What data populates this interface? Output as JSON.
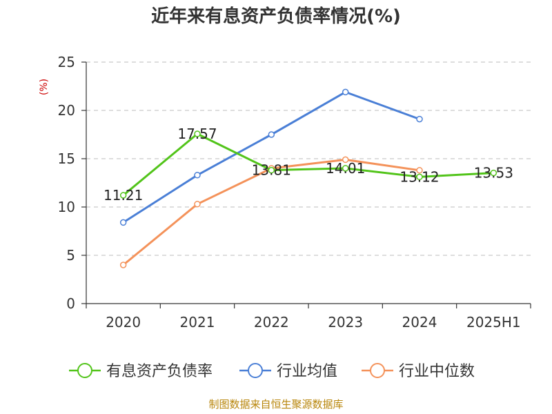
{
  "chart_data": {
    "type": "line",
    "title": "近年来有息资产负债率情况(%)",
    "ylabel": "(%)",
    "xlabel": "",
    "categories": [
      "2020",
      "2021",
      "2022",
      "2023",
      "2024",
      "2025H1"
    ],
    "ylim": [
      0,
      25
    ],
    "yticks": [
      0,
      5,
      10,
      15,
      20,
      25
    ],
    "grid": true,
    "legend_position": "bottom",
    "series": [
      {
        "name": "有息资产负债率",
        "color": "#52c41a",
        "values": [
          11.21,
          17.57,
          13.81,
          14.01,
          13.12,
          13.53
        ],
        "labels": [
          "11.21",
          "17.57",
          "13.81",
          "14.01",
          "13.12",
          "13.53"
        ]
      },
      {
        "name": "行业均值",
        "color": "#4a7fd6",
        "values": [
          8.4,
          13.3,
          17.5,
          21.9,
          19.1,
          null
        ]
      },
      {
        "name": "行业中位数",
        "color": "#f4925a",
        "values": [
          4.0,
          10.3,
          14.0,
          14.9,
          13.8,
          null
        ]
      }
    ]
  },
  "source_note": "制图数据来自恒生聚源数据库"
}
